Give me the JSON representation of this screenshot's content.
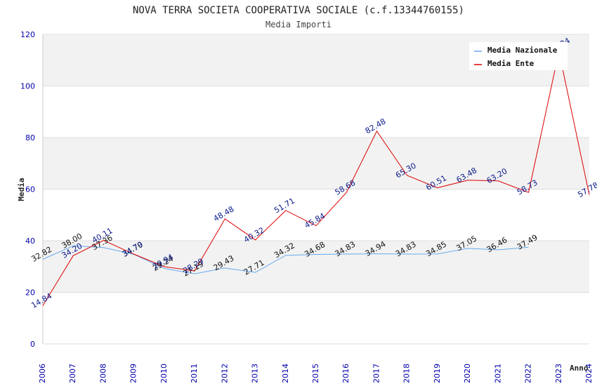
{
  "chart_data": {
    "type": "line",
    "title": "NOVA TERRA SOCIETA COOPERATIVA SOCIALE (c.f.13344760155)",
    "subtitle": "Media Importi",
    "xlabel": "Anno",
    "ylabel": "Media",
    "ylim": [
      0,
      120
    ],
    "yticks": [
      0,
      20,
      40,
      60,
      80,
      100,
      120
    ],
    "grid": "horizontal bands",
    "legend_position": "top-right",
    "x": [
      "2006",
      "2007",
      "2008",
      "2009",
      "2010",
      "2011",
      "2012",
      "2013",
      "2014",
      "2015",
      "2016",
      "2017",
      "2018",
      "2019",
      "2020",
      "2021",
      "2022",
      "2023",
      "2024"
    ],
    "series": [
      {
        "name": "Media Nazionale",
        "color": "#66aaee",
        "values": [
          32.82,
          38.0,
          37.36,
          34.7,
          29.24,
          27.19,
          29.43,
          27.71,
          34.32,
          34.68,
          34.83,
          34.94,
          34.83,
          34.85,
          37.05,
          36.46,
          37.49,
          null,
          null
        ]
      },
      {
        "name": "Media Ente",
        "color": "#dd0000",
        "values": [
          14.84,
          34.2,
          40.11,
          34.79,
          29.94,
          28.29,
          48.48,
          40.32,
          51.71,
          45.84,
          58.68,
          82.48,
          65.3,
          60.51,
          63.48,
          63.2,
          58.73,
          113.34,
          57.78
        ]
      }
    ]
  }
}
